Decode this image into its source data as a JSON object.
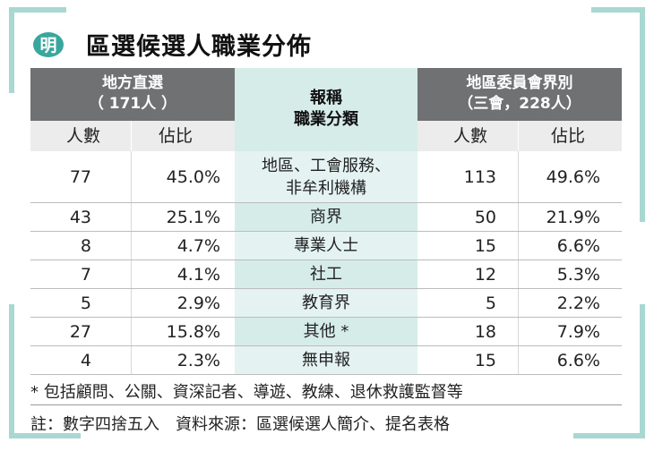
{
  "logo_text": "明",
  "title": "區選候選人職業分佈",
  "header": {
    "left_group": [
      "地方直選",
      "（ 171人 ）"
    ],
    "middle": [
      "報稱",
      "職業分類"
    ],
    "right_group": [
      "地區委員會界別",
      "（三會，228人）"
    ],
    "sub_left": [
      "人數",
      "佔比"
    ],
    "sub_right": [
      "人數",
      "佔比"
    ]
  },
  "rows": [
    {
      "d_count": "77",
      "d_pct": "45.0%",
      "category": "地區、工會服務、\n非牟利機構",
      "c_count": "113",
      "c_pct": "49.6%"
    },
    {
      "d_count": "43",
      "d_pct": "25.1%",
      "category": "商界",
      "c_count": "50",
      "c_pct": "21.9%"
    },
    {
      "d_count": "8",
      "d_pct": "4.7%",
      "category": "專業人士",
      "c_count": "15",
      "c_pct": "6.6%"
    },
    {
      "d_count": "7",
      "d_pct": "4.1%",
      "category": "社工",
      "c_count": "12",
      "c_pct": "5.3%"
    },
    {
      "d_count": "5",
      "d_pct": "2.9%",
      "category": "教育界",
      "c_count": "5",
      "c_pct": "2.2%"
    },
    {
      "d_count": "27",
      "d_pct": "15.8%",
      "category": "其他 *",
      "c_count": "18",
      "c_pct": "7.9%"
    },
    {
      "d_count": "4",
      "d_pct": "2.3%",
      "category": "無申報",
      "c_count": "15",
      "c_pct": "6.6%"
    }
  ],
  "footnote": "* 包括顧問、公關、資深記者、導遊、教練、退休救護監督等",
  "note": "註：數字四捨五入　資料來源：區選候選人簡介、提名表格"
}
